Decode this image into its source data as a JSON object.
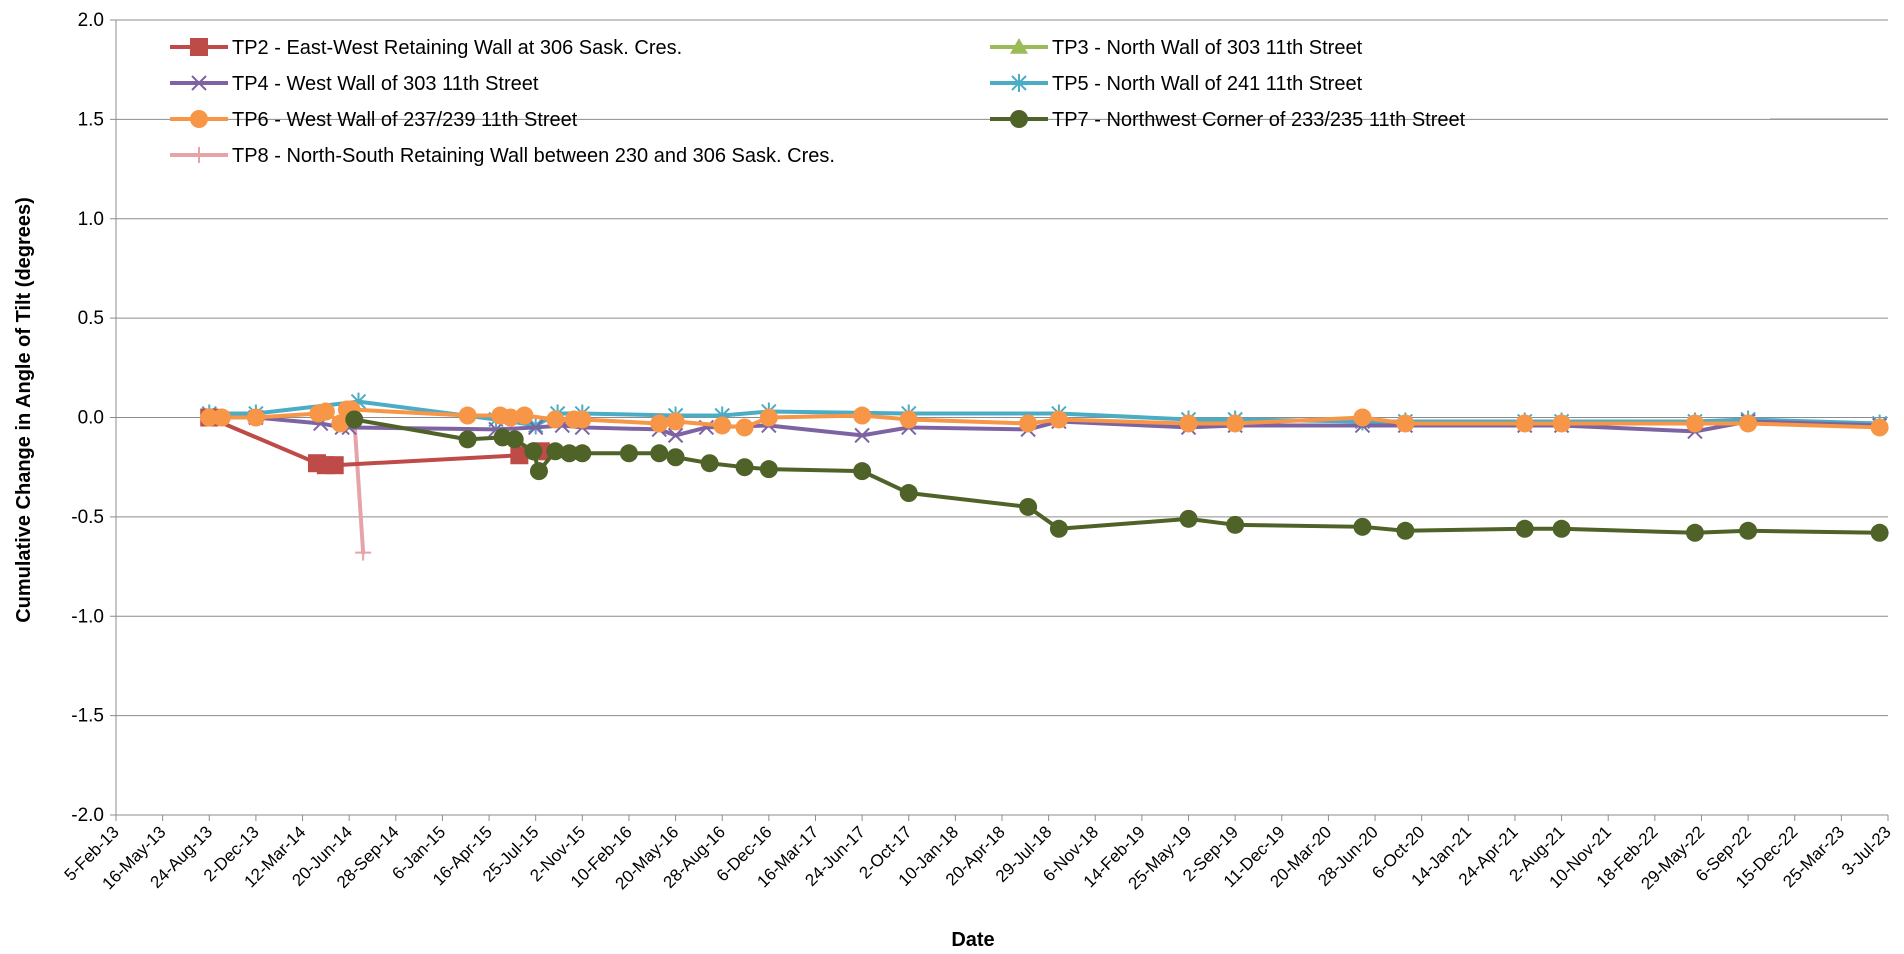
{
  "chart_data": {
    "type": "line",
    "xlabel": "Date",
    "ylabel": "Cumulative Change in Angle of Tilt (degrees)",
    "ylim": [
      -2.0,
      2.0
    ],
    "y_ticks": [
      "2.0",
      "1.5",
      "1.0",
      "0.5",
      "0.0",
      "-0.5",
      "-1.0",
      "-1.5",
      "-2.0"
    ],
    "xlim": [
      "2013-02-05",
      "2023-07-03"
    ],
    "x_ticks": [
      {
        "date": "2013-02-05",
        "label": "5-Feb-13"
      },
      {
        "date": "2013-05-16",
        "label": "16-May-13"
      },
      {
        "date": "2013-08-24",
        "label": "24-Aug-13"
      },
      {
        "date": "2013-12-02",
        "label": "2-Dec-13"
      },
      {
        "date": "2014-03-12",
        "label": "12-Mar-14"
      },
      {
        "date": "2014-06-20",
        "label": "20-Jun-14"
      },
      {
        "date": "2014-09-28",
        "label": "28-Sep-14"
      },
      {
        "date": "2015-01-06",
        "label": "6-Jan-15"
      },
      {
        "date": "2015-04-16",
        "label": "16-Apr-15"
      },
      {
        "date": "2015-07-25",
        "label": "25-Jul-15"
      },
      {
        "date": "2015-11-02",
        "label": "2-Nov-15"
      },
      {
        "date": "2016-02-10",
        "label": "10-Feb-16"
      },
      {
        "date": "2016-05-20",
        "label": "20-May-16"
      },
      {
        "date": "2016-08-28",
        "label": "28-Aug-16"
      },
      {
        "date": "2016-12-06",
        "label": "6-Dec-16"
      },
      {
        "date": "2017-03-16",
        "label": "16-Mar-17"
      },
      {
        "date": "2017-06-24",
        "label": "24-Jun-17"
      },
      {
        "date": "2017-10-02",
        "label": "2-Oct-17"
      },
      {
        "date": "2018-01-10",
        "label": "10-Jan-18"
      },
      {
        "date": "2018-04-20",
        "label": "20-Apr-18"
      },
      {
        "date": "2018-07-29",
        "label": "29-Jul-18"
      },
      {
        "date": "2018-11-06",
        "label": "6-Nov-18"
      },
      {
        "date": "2019-02-14",
        "label": "14-Feb-19"
      },
      {
        "date": "2019-05-25",
        "label": "25-May-19"
      },
      {
        "date": "2019-09-02",
        "label": "2-Sep-19"
      },
      {
        "date": "2019-12-11",
        "label": "11-Dec-19"
      },
      {
        "date": "2020-03-20",
        "label": "20-Mar-20"
      },
      {
        "date": "2020-06-28",
        "label": "28-Jun-20"
      },
      {
        "date": "2020-10-06",
        "label": "6-Oct-20"
      },
      {
        "date": "2021-01-14",
        "label": "14-Jan-21"
      },
      {
        "date": "2021-04-24",
        "label": "24-Apr-21"
      },
      {
        "date": "2021-08-02",
        "label": "2-Aug-21"
      },
      {
        "date": "2021-11-10",
        "label": "10-Nov-21"
      },
      {
        "date": "2022-02-18",
        "label": "18-Feb-22"
      },
      {
        "date": "2022-05-29",
        "label": "29-May-22"
      },
      {
        "date": "2022-09-06",
        "label": "6-Sep-22"
      },
      {
        "date": "2022-12-15",
        "label": "15-Dec-22"
      },
      {
        "date": "2023-03-25",
        "label": "25-Mar-23"
      },
      {
        "date": "2023-07-03",
        "label": "3-Jul-23"
      }
    ],
    "grid": "horizontal",
    "legend_position": "top-left",
    "series": [
      {
        "name": "TP2 - East-West Retaining Wall at 306 Sask. Cres.",
        "color": "#BE4B48",
        "marker": "square",
        "points": [
          [
            "2013-08-24",
            0.0
          ],
          [
            "2014-04-12",
            -0.23
          ],
          [
            "2014-05-01",
            -0.24
          ],
          [
            "2014-05-20",
            -0.24
          ],
          [
            "2015-06-20",
            -0.19
          ],
          [
            "2015-08-05",
            -0.17
          ]
        ]
      },
      {
        "name": "TP3 - North Wall of 303 11th Street",
        "color": "#9BBB59",
        "marker": "triangle",
        "points": [
          [
            "2013-08-24",
            0.0
          ],
          [
            "2013-09-15",
            0.0
          ]
        ]
      },
      {
        "name": "TP4 - West Wall of 303 11th Street",
        "color": "#7E63A2",
        "marker": "x",
        "points": [
          [
            "2013-08-24",
            0.0
          ],
          [
            "2013-12-02",
            0.0
          ],
          [
            "2014-04-20",
            -0.03
          ],
          [
            "2014-06-05",
            -0.05
          ],
          [
            "2014-06-20",
            -0.05
          ],
          [
            "2015-05-01",
            -0.06
          ],
          [
            "2015-07-25",
            -0.05
          ],
          [
            "2015-09-20",
            -0.04
          ],
          [
            "2015-11-02",
            -0.05
          ],
          [
            "2016-04-15",
            -0.06
          ],
          [
            "2016-05-20",
            -0.09
          ],
          [
            "2016-07-25",
            -0.05
          ],
          [
            "2016-12-06",
            -0.04
          ],
          [
            "2017-06-24",
            -0.09
          ],
          [
            "2017-10-02",
            -0.05
          ],
          [
            "2018-06-15",
            -0.06
          ],
          [
            "2018-08-20",
            -0.02
          ],
          [
            "2019-05-25",
            -0.05
          ],
          [
            "2019-09-02",
            -0.04
          ],
          [
            "2020-06-01",
            -0.04
          ],
          [
            "2020-09-01",
            -0.04
          ],
          [
            "2021-05-15",
            -0.04
          ],
          [
            "2021-08-02",
            -0.04
          ],
          [
            "2022-05-15",
            -0.07
          ],
          [
            "2022-09-06",
            -0.02
          ],
          [
            "2023-06-15",
            -0.04
          ]
        ]
      },
      {
        "name": "TP5 - North Wall of 241 11th Street",
        "color": "#4BACC6",
        "marker": "star",
        "points": [
          [
            "2013-08-24",
            0.02
          ],
          [
            "2013-12-02",
            0.02
          ],
          [
            "2014-07-10",
            0.08
          ],
          [
            "2015-05-01",
            -0.01
          ],
          [
            "2015-07-25",
            -0.04
          ],
          [
            "2015-09-10",
            0.02
          ],
          [
            "2015-11-02",
            0.02
          ],
          [
            "2016-05-20",
            0.01
          ],
          [
            "2016-08-28",
            0.01
          ],
          [
            "2016-12-06",
            0.03
          ],
          [
            "2017-10-02",
            0.02
          ],
          [
            "2018-08-20",
            0.02
          ],
          [
            "2019-05-25",
            -0.01
          ],
          [
            "2019-09-02",
            -0.01
          ],
          [
            "2020-06-01",
            -0.02
          ],
          [
            "2020-09-01",
            -0.02
          ],
          [
            "2021-05-15",
            -0.02
          ],
          [
            "2021-08-02",
            -0.02
          ],
          [
            "2022-05-15",
            -0.02
          ],
          [
            "2022-09-06",
            -0.01
          ],
          [
            "2023-06-15",
            -0.03
          ]
        ]
      },
      {
        "name": "TP6 - West Wall of 237/239 11th Street",
        "color": "#F79646",
        "marker": "circle",
        "points": [
          [
            "2013-08-24",
            0.0
          ],
          [
            "2013-09-20",
            0.0
          ],
          [
            "2013-12-02",
            0.0
          ],
          [
            "2014-04-15",
            0.02
          ],
          [
            "2014-05-01",
            0.03
          ],
          [
            "2014-06-01",
            -0.03
          ],
          [
            "2014-06-15",
            0.04
          ],
          [
            "2014-06-25",
            0.04
          ],
          [
            "2015-03-01",
            0.01
          ],
          [
            "2015-05-10",
            0.01
          ],
          [
            "2015-06-01",
            0.0
          ],
          [
            "2015-07-01",
            0.01
          ],
          [
            "2015-09-05",
            -0.01
          ],
          [
            "2015-10-15",
            -0.01
          ],
          [
            "2015-11-02",
            -0.01
          ],
          [
            "2016-04-15",
            -0.03
          ],
          [
            "2016-05-20",
            -0.02
          ],
          [
            "2016-08-28",
            -0.04
          ],
          [
            "2016-10-15",
            -0.05
          ],
          [
            "2016-12-06",
            0.0
          ],
          [
            "2017-06-24",
            0.01
          ],
          [
            "2017-10-02",
            -0.01
          ],
          [
            "2018-06-15",
            -0.03
          ],
          [
            "2018-08-20",
            -0.01
          ],
          [
            "2019-05-25",
            -0.03
          ],
          [
            "2019-09-02",
            -0.03
          ],
          [
            "2020-06-01",
            0.0
          ],
          [
            "2020-09-01",
            -0.03
          ],
          [
            "2021-05-15",
            -0.03
          ],
          [
            "2021-08-02",
            -0.03
          ],
          [
            "2022-05-15",
            -0.03
          ],
          [
            "2022-09-06",
            -0.03
          ],
          [
            "2023-06-15",
            -0.05
          ]
        ]
      },
      {
        "name": "TP7 - Northwest Corner of 233/235 11th Street",
        "color": "#4F6228",
        "marker": "circle",
        "points": [
          [
            "2014-07-01",
            -0.01
          ],
          [
            "2015-03-01",
            -0.11
          ],
          [
            "2015-05-15",
            -0.1
          ],
          [
            "2015-06-10",
            -0.11
          ],
          [
            "2015-07-20",
            -0.17
          ],
          [
            "2015-08-01",
            -0.27
          ],
          [
            "2015-09-05",
            -0.17
          ],
          [
            "2015-10-05",
            -0.18
          ],
          [
            "2015-11-02",
            -0.18
          ],
          [
            "2016-02-10",
            -0.18
          ],
          [
            "2016-04-15",
            -0.18
          ],
          [
            "2016-05-20",
            -0.2
          ],
          [
            "2016-08-01",
            -0.23
          ],
          [
            "2016-10-15",
            -0.25
          ],
          [
            "2016-12-06",
            -0.26
          ],
          [
            "2017-06-24",
            -0.27
          ],
          [
            "2017-10-02",
            -0.38
          ],
          [
            "2018-06-15",
            -0.45
          ],
          [
            "2018-08-20",
            -0.56
          ],
          [
            "2019-05-25",
            -0.51
          ],
          [
            "2019-09-02",
            -0.54
          ],
          [
            "2020-06-01",
            -0.55
          ],
          [
            "2020-09-01",
            -0.57
          ],
          [
            "2021-05-15",
            -0.56
          ],
          [
            "2021-08-02",
            -0.56
          ],
          [
            "2022-05-15",
            -0.58
          ],
          [
            "2022-09-06",
            -0.57
          ],
          [
            "2023-06-15",
            -0.58
          ]
        ]
      },
      {
        "name": "TP8 - North-South Retaining Wall between 230 and 306 Sask. Cres.",
        "color": "#E6A4A8",
        "marker": "plus",
        "points": [
          [
            "2014-07-01",
            -0.01
          ],
          [
            "2014-07-20",
            -0.68
          ]
        ]
      }
    ]
  }
}
